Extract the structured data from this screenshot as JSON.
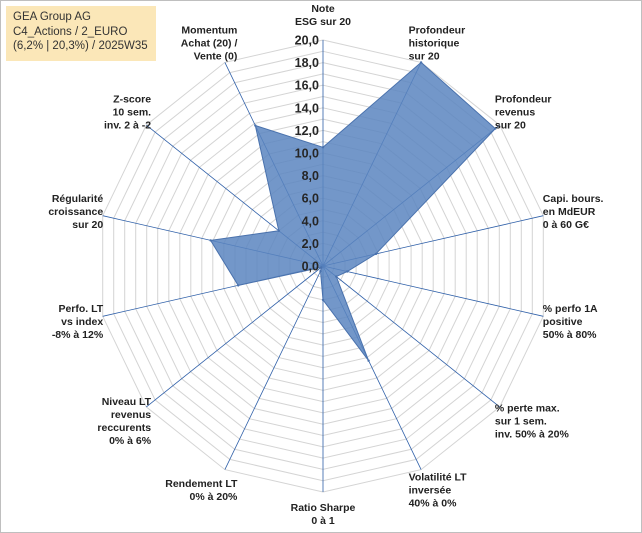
{
  "info_box": {
    "line1": "GEA Group AG",
    "line2": "C4_Actions / 2_EURO",
    "line3": "(6,2% | 20,3%) / 2025W35"
  },
  "colors": {
    "fill": "#5b85c0",
    "fill_opacity": "0.85",
    "outline": "#4a72ad",
    "axis_lines": "#2e5fa8",
    "grid_rings": "#d4d4d4",
    "info_box_bg": "#fbe7b8"
  },
  "chart_data": {
    "type": "radar",
    "range": [
      0,
      20
    ],
    "tick_step": 2,
    "grid_rings": 20,
    "tick_labels": [
      "0,0",
      "2,0",
      "4,0",
      "6,0",
      "8,0",
      "10,0",
      "12,0",
      "14,0",
      "16,0",
      "18,0",
      "20,0"
    ],
    "axes": [
      {
        "lines": [
          "Note",
          "ESG sur 20"
        ],
        "value": 10.5
      },
      {
        "lines": [
          "Profondeur",
          "historique",
          "sur 20"
        ],
        "value": 20.0
      },
      {
        "lines": [
          "Profondeur",
          "revenus",
          "sur 20"
        ],
        "value": 19.5
      },
      {
        "lines": [
          "Capi. bours.",
          "en MdEUR",
          "0 à 60 G€"
        ],
        "value": 4.8
      },
      {
        "lines": [
          "% perfo 1A",
          "positive",
          "50% à 80%"
        ],
        "value": 2.2
      },
      {
        "lines": [
          "% perte max.",
          "sur 1 sem.",
          "inv. 50% à 20%"
        ],
        "value": 1.5
      },
      {
        "lines": [
          "Volatilité LT",
          "inversée",
          "40% à 0%"
        ],
        "value": 9.3
      },
      {
        "lines": [
          "Ratio Sharpe",
          "0 à 1"
        ],
        "value": 3.0
      },
      {
        "lines": [
          "Rendement LT",
          "0% à 20%"
        ],
        "value": 0.5
      },
      {
        "lines": [
          "Niveau LT",
          "revenus",
          "reccurents",
          "0% à 6%"
        ],
        "value": 0.2
      },
      {
        "lines": [
          "Perfo. LT",
          "vs index",
          "-8% à 12%"
        ],
        "value": 7.7
      },
      {
        "lines": [
          "Régularité",
          "croissance",
          "sur 20"
        ],
        "value": 10.2
      },
      {
        "lines": [
          "Z-score",
          "10 sem.",
          "inv. 2 à -2"
        ],
        "value": 5.0
      },
      {
        "lines": [
          "Momentum",
          "Achat (20) /",
          "Vente (0)"
        ],
        "value": 13.8
      }
    ]
  }
}
